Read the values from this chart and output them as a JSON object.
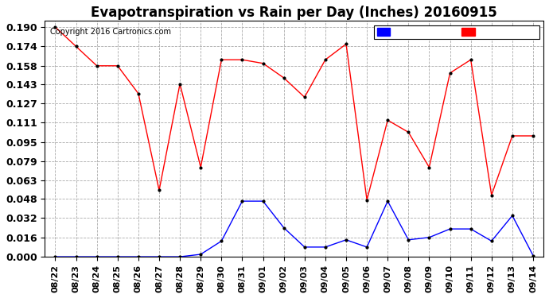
{
  "title": "Evapotranspiration vs Rain per Day (Inches) 20160915",
  "copyright": "Copyright 2016 Cartronics.com",
  "x_labels": [
    "08/22",
    "08/23",
    "08/24",
    "08/25",
    "08/26",
    "08/27",
    "08/28",
    "08/29",
    "08/30",
    "08/31",
    "09/01",
    "09/02",
    "09/03",
    "09/04",
    "09/05",
    "09/06",
    "09/07",
    "09/08",
    "09/09",
    "09/10",
    "09/11",
    "09/12",
    "09/13",
    "09/14"
  ],
  "et_values": [
    0.19,
    0.174,
    0.158,
    0.158,
    0.135,
    0.055,
    0.143,
    0.074,
    0.163,
    0.163,
    0.16,
    0.148,
    0.132,
    0.163,
    0.176,
    0.047,
    0.113,
    0.103,
    0.074,
    0.152,
    0.163,
    0.051,
    0.1,
    0.1
  ],
  "rain_values": [
    0.0,
    0.0,
    0.0,
    0.0,
    0.0,
    0.0,
    0.0,
    0.002,
    0.013,
    0.046,
    0.046,
    0.024,
    0.008,
    0.008,
    0.014,
    0.008,
    0.046,
    0.014,
    0.016,
    0.023,
    0.023,
    0.013,
    0.034,
    0.001
  ],
  "et_color": "#ff0000",
  "rain_color": "#0000ff",
  "background_color": "#ffffff",
  "grid_color": "#aaaaaa",
  "ylim_min": 0.0,
  "ylim_max": 0.195,
  "yticks": [
    0.0,
    0.016,
    0.032,
    0.048,
    0.063,
    0.079,
    0.095,
    0.111,
    0.127,
    0.143,
    0.158,
    0.174,
    0.19
  ],
  "legend_rain_bg": "#0000ff",
  "legend_et_bg": "#ff0000",
  "title_fontsize": 12,
  "tick_fontsize": 9,
  "marker": ".",
  "marker_size": 4
}
